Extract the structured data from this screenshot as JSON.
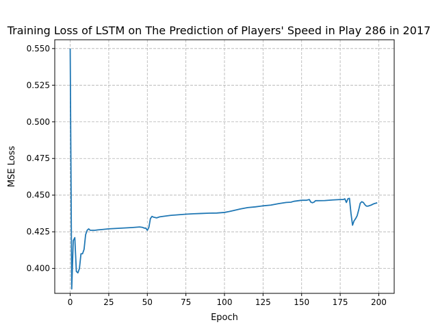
{
  "chart_data": {
    "type": "line",
    "title": "Training Loss of LSTM on The Prediction of Players' Speed in Play 286 in 2017",
    "xlabel": "Epoch",
    "ylabel": "MSE Loss",
    "xlim": [
      -10,
      210
    ],
    "ylim": [
      0.383,
      0.556
    ],
    "xticks": [
      0,
      25,
      50,
      75,
      100,
      125,
      150,
      175,
      200
    ],
    "xtick_labels": [
      "0",
      "25",
      "50",
      "75",
      "100",
      "125",
      "150",
      "175",
      "200"
    ],
    "yticks": [
      0.4,
      0.425,
      0.45,
      0.475,
      0.5,
      0.525,
      0.55
    ],
    "ytick_labels": [
      "0.400",
      "0.425",
      "0.450",
      "0.475",
      "0.500",
      "0.525",
      "0.550"
    ],
    "grid": true,
    "grid_style": "dashed",
    "line_color": "#1f77b4",
    "series": [
      {
        "x": [
          0,
          1,
          2,
          3,
          4,
          5,
          6,
          7,
          8,
          9,
          10,
          11,
          12,
          13,
          14,
          16,
          18,
          20,
          25,
          30,
          35,
          40,
          45,
          47,
          48,
          49,
          50,
          51,
          52,
          53,
          54,
          56,
          58,
          60,
          65,
          70,
          75,
          80,
          85,
          90,
          95,
          100,
          103,
          106,
          110,
          115,
          120,
          125,
          130,
          135,
          140,
          143,
          145,
          150,
          153,
          155,
          156,
          157,
          158,
          159,
          160,
          165,
          170,
          175,
          177,
          178,
          179,
          180,
          181,
          182,
          183,
          184,
          185,
          186,
          187,
          188,
          189,
          190,
          191,
          192,
          193,
          195,
          197,
          199
        ],
        "y": [
          0.55,
          0.386,
          0.419,
          0.421,
          0.398,
          0.397,
          0.4,
          0.41,
          0.41,
          0.413,
          0.423,
          0.426,
          0.427,
          0.426,
          0.426,
          0.426,
          0.4263,
          0.4265,
          0.427,
          0.4273,
          0.4276,
          0.4279,
          0.4283,
          0.428,
          0.4275,
          0.4275,
          0.426,
          0.428,
          0.434,
          0.4355,
          0.435,
          0.4345,
          0.4352,
          0.4355,
          0.4362,
          0.4366,
          0.437,
          0.4373,
          0.4375,
          0.4377,
          0.4378,
          0.4382,
          0.4388,
          0.4395,
          0.4405,
          0.4415,
          0.442,
          0.4427,
          0.4432,
          0.4442,
          0.445,
          0.4452,
          0.4458,
          0.4465,
          0.4465,
          0.447,
          0.4452,
          0.4448,
          0.4452,
          0.4462,
          0.4462,
          0.4463,
          0.4467,
          0.447,
          0.447,
          0.4475,
          0.445,
          0.4475,
          0.4478,
          0.4375,
          0.4295,
          0.4325,
          0.434,
          0.436,
          0.44,
          0.4445,
          0.4455,
          0.445,
          0.4435,
          0.4425,
          0.4425,
          0.4432,
          0.4442,
          0.4448
        ]
      }
    ]
  }
}
